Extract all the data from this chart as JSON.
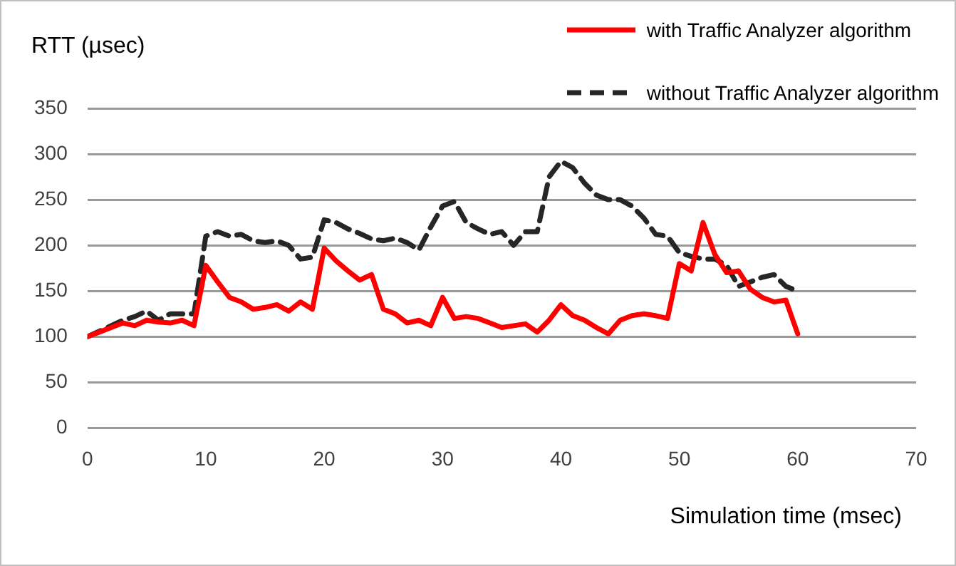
{
  "chart_data": {
    "type": "line",
    "xlabel": "Simulation time (msec)",
    "ylabel": "RTT (µsec)",
    "x": [
      0,
      1,
      2,
      3,
      4,
      5,
      6,
      7,
      8,
      9,
      10,
      11,
      12,
      13,
      14,
      15,
      16,
      17,
      18,
      19,
      20,
      21,
      22,
      23,
      24,
      25,
      26,
      27,
      28,
      29,
      30,
      31,
      32,
      33,
      34,
      35,
      36,
      37,
      38,
      39,
      40,
      41,
      42,
      43,
      44,
      45,
      46,
      47,
      48,
      49,
      50,
      51,
      52,
      53,
      54,
      55,
      56,
      57,
      58,
      59,
      60
    ],
    "series": [
      {
        "name": "with Traffic Analyzer algorithm",
        "color": "#ff0000",
        "line_style": "solid",
        "values": [
          100,
          105,
          110,
          115,
          112,
          118,
          116,
          115,
          118,
          112,
          178,
          160,
          143,
          138,
          130,
          132,
          135,
          128,
          138,
          130,
          197,
          183,
          172,
          162,
          168,
          130,
          125,
          115,
          118,
          112,
          143,
          120,
          122,
          120,
          115,
          110,
          112,
          114,
          105,
          118,
          135,
          123,
          118,
          110,
          103,
          118,
          123,
          125,
          123,
          120,
          180,
          172,
          225,
          190,
          170,
          172,
          152,
          143,
          138,
          140,
          103
        ]
      },
      {
        "name": "without Traffic Analyzer algorithm",
        "color": "#262626",
        "line_style": "dashed",
        "values": [
          100,
          106,
          112,
          118,
          122,
          128,
          118,
          125,
          125,
          125,
          210,
          215,
          210,
          212,
          205,
          203,
          205,
          200,
          185,
          187,
          228,
          225,
          218,
          213,
          207,
          205,
          208,
          203,
          195,
          220,
          243,
          248,
          225,
          218,
          212,
          215,
          200,
          215,
          215,
          275,
          292,
          285,
          268,
          255,
          250,
          250,
          243,
          230,
          212,
          210,
          192,
          188,
          185,
          185,
          178,
          155,
          160,
          165,
          168,
          155,
          150
        ]
      }
    ],
    "xlim": [
      0,
      70
    ],
    "xticks": [
      0,
      10,
      20,
      30,
      40,
      50,
      60,
      70
    ],
    "ylim": [
      0,
      350
    ],
    "yticks": [
      0,
      50,
      100,
      150,
      200,
      250,
      300,
      350
    ],
    "grid": "y",
    "legend": "top right",
    "marker": "none"
  }
}
